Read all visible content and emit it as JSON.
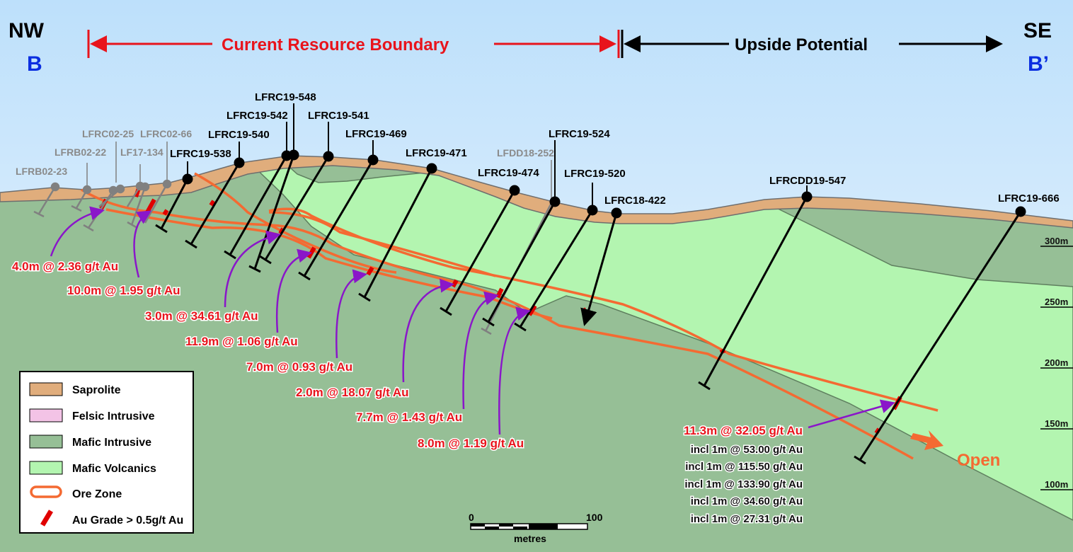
{
  "header": {
    "left_dir": "NW",
    "left_label": "B",
    "right_dir": "SE",
    "right_label": "B’",
    "resource_boundary": "Current Resource Boundary",
    "upside": "Upside Potential"
  },
  "drillholes": {
    "active": [
      "LFRC19-538",
      "LFRC19-540",
      "LFRC19-542",
      "LFRC19-548",
      "LFRC19-541",
      "LFRC19-469",
      "LFRC19-471",
      "LFRC19-474",
      "LFRC19-524",
      "LFRC19-520",
      "LFRC18-422",
      "LFRCDD19-547",
      "LFRC19-666"
    ],
    "historic": [
      "LFRB02-23",
      "LFRB02-22",
      "LFRC02-25",
      "LF17-134",
      "LFRC02-66",
      "LFDD18-252"
    ]
  },
  "intercepts": [
    "4.0m @ 2.36 g/t Au",
    "10.0m @ 1.95 g/t Au",
    "3.0m @ 34.61 g/t Au",
    "11.9m @ 1.06 g/t Au",
    "7.0m @ 0.93 g/t Au",
    "2.0m @ 18.07 g/t Au",
    "7.7m @ 1.43 g/t Au",
    "8.0m @ 1.19 g/t Au",
    "11.3m @ 32.05 g/t Au"
  ],
  "includes": [
    "incl 1m @ 53.00 g/t Au",
    "incl 1m @ 115.50 g/t Au",
    "incl 1m @ 133.90 g/t Au",
    "incl 1m @ 34.60 g/t Au",
    "incl 1m @ 27.31 g/t Au"
  ],
  "open_label": "Open",
  "depth_scale": [
    "300m",
    "250m",
    "200m",
    "150m",
    "100m"
  ],
  "scale_bar": {
    "start": "0",
    "end": "100",
    "unit": "metres"
  },
  "legend": [
    {
      "label": "Saprolite",
      "color": "#e0ad7c"
    },
    {
      "label": "Felsic Intrusive",
      "color": "#f3c3e6"
    },
    {
      "label": "Mafic Intrusive",
      "color": "#96bf96"
    },
    {
      "label": "Mafic Volcanics",
      "color": "#b3f5b0"
    },
    {
      "label": "Ore Zone",
      "color": "#f46a32"
    },
    {
      "label": "Au Grade > 0.5g/t Au",
      "color": "#e00000"
    }
  ]
}
